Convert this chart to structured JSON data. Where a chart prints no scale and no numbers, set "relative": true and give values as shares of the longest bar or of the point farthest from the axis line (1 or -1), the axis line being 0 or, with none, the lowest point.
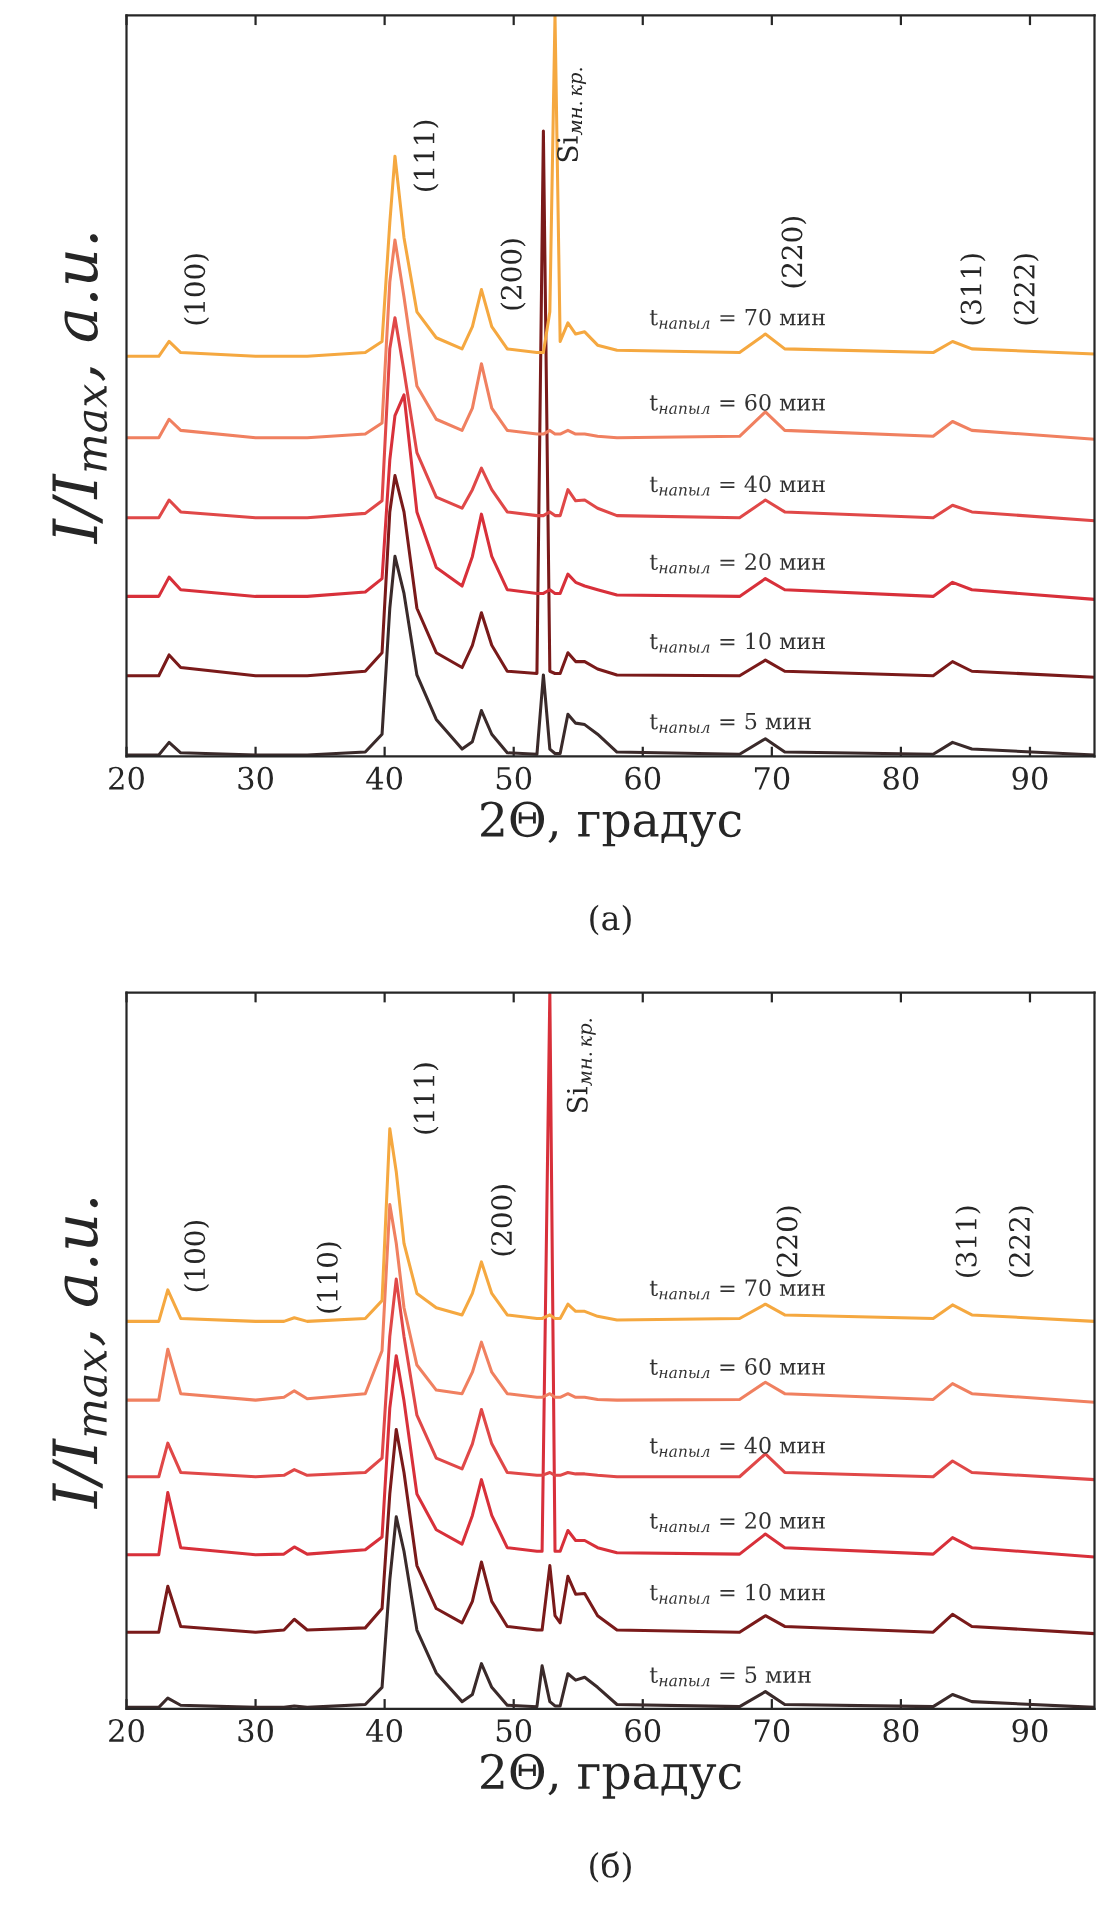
{
  "chart_data": [
    {
      "type": "line",
      "relative": true,
      "xlabel": "2Θ, градус",
      "ylabel": "I/I$_{max}$, a.u.",
      "xlim": [
        20,
        95
      ],
      "xticks": [
        20,
        30,
        40,
        50,
        60,
        70,
        80,
        90
      ],
      "grid": false,
      "legend": false,
      "marker": "none",
      "line_style": "solid",
      "x": [
        20,
        22.5,
        23.3,
        24.2,
        30,
        32.5,
        33.2,
        34,
        38.5,
        39.8,
        40.4,
        40.8,
        41.5,
        42.5,
        44,
        46,
        46.8,
        47.5,
        48.3,
        49.5,
        51.8,
        52.3,
        52.8,
        53.2,
        53.6,
        54.2,
        54.8,
        55.5,
        56.5,
        58,
        67.5,
        69.5,
        71,
        82.5,
        84,
        85.5,
        95
      ],
      "series": [
        {
          "name": "t$_{напыл}$ = 5 мин",
          "color": "#3a2a2a",
          "values": [
            0.002,
            0.002,
            0.019,
            0.005,
            0.002,
            0.002,
            0.002,
            0.002,
            0.006,
            0.03,
            0.2,
            0.27,
            0.22,
            0.11,
            0.05,
            0.01,
            0.02,
            0.062,
            0.03,
            0.005,
            0.003,
            0.11,
            0.01,
            0.004,
            0.004,
            0.057,
            0.045,
            0.043,
            0.03,
            0.006,
            0.003,
            0.024,
            0.006,
            0.003,
            0.019,
            0.01,
            0.002
          ]
        },
        {
          "name": "t$_{напыл}$ = 10 мин",
          "color": "#7a1a1a",
          "values": [
            0.109,
            0.109,
            0.137,
            0.12,
            0.109,
            0.109,
            0.109,
            0.109,
            0.115,
            0.14,
            0.33,
            0.379,
            0.33,
            0.2,
            0.14,
            0.12,
            0.15,
            0.194,
            0.15,
            0.115,
            0.112,
            0.844,
            0.115,
            0.112,
            0.112,
            0.14,
            0.128,
            0.128,
            0.118,
            0.11,
            0.109,
            0.13,
            0.115,
            0.109,
            0.128,
            0.115,
            0.107
          ]
        },
        {
          "name": "t$_{напыл}$ = 20 мин",
          "color": "#d8303a",
          "values": [
            0.216,
            0.216,
            0.242,
            0.225,
            0.216,
            0.216,
            0.216,
            0.216,
            0.222,
            0.24,
            0.4,
            0.46,
            0.488,
            0.33,
            0.255,
            0.23,
            0.27,
            0.327,
            0.27,
            0.225,
            0.22,
            0.22,
            0.225,
            0.22,
            0.22,
            0.246,
            0.235,
            0.23,
            0.225,
            0.218,
            0.216,
            0.24,
            0.225,
            0.216,
            0.235,
            0.225,
            0.212
          ]
        },
        {
          "name": "t$_{напыл}$ = 40 мин",
          "color": "#e04848",
          "values": [
            0.322,
            0.322,
            0.346,
            0.33,
            0.322,
            0.322,
            0.322,
            0.322,
            0.328,
            0.345,
            0.55,
            0.592,
            0.52,
            0.41,
            0.35,
            0.335,
            0.36,
            0.389,
            0.36,
            0.33,
            0.325,
            0.325,
            0.33,
            0.325,
            0.325,
            0.36,
            0.345,
            0.346,
            0.335,
            0.325,
            0.322,
            0.346,
            0.33,
            0.322,
            0.339,
            0.33,
            0.318
          ]
        },
        {
          "name": "t$_{напыл}$ = 60 мин",
          "color": "#f08060",
          "values": [
            0.43,
            0.43,
            0.455,
            0.44,
            0.43,
            0.43,
            0.43,
            0.43,
            0.435,
            0.45,
            0.64,
            0.697,
            0.62,
            0.5,
            0.455,
            0.44,
            0.47,
            0.53,
            0.47,
            0.44,
            0.435,
            0.435,
            0.44,
            0.435,
            0.435,
            0.44,
            0.435,
            0.435,
            0.432,
            0.43,
            0.432,
            0.465,
            0.44,
            0.432,
            0.452,
            0.44,
            0.428
          ]
        },
        {
          "name": "t$_{напыл}$ = 70 мин",
          "color": "#f5a840",
          "values": [
            0.54,
            0.54,
            0.56,
            0.545,
            0.54,
            0.54,
            0.54,
            0.54,
            0.545,
            0.56,
            0.72,
            0.81,
            0.7,
            0.6,
            0.565,
            0.55,
            0.58,
            0.63,
            0.58,
            0.55,
            0.545,
            0.545,
            0.6,
            1.0,
            0.56,
            0.585,
            0.57,
            0.573,
            0.555,
            0.548,
            0.545,
            0.57,
            0.55,
            0.545,
            0.56,
            0.55,
            0.543
          ]
        }
      ],
      "annotations": [
        "(100)",
        "(111)",
        "(200)",
        "Si$_{мн.кр.}$",
        "(220)",
        "(311)",
        "(222)",
        "(а)"
      ]
    },
    {
      "type": "line",
      "relative": true,
      "xlabel": "2Θ, градус",
      "ylabel": "I/I$_{max}$, a.u.",
      "xlim": [
        20,
        95
      ],
      "xticks": [
        20,
        30,
        40,
        50,
        60,
        70,
        80,
        90
      ],
      "grid": false,
      "legend": false,
      "marker": "none",
      "line_style": "solid",
      "x": [
        20,
        22.5,
        23.2,
        24.2,
        30,
        32.2,
        33,
        34,
        38.5,
        39.8,
        40.4,
        40.9,
        41.5,
        42.5,
        44,
        46,
        46.8,
        47.5,
        48.3,
        49.5,
        51.8,
        52.2,
        52.8,
        53.2,
        53.6,
        54.2,
        54.8,
        55.5,
        56.5,
        58,
        67.5,
        69.5,
        71,
        82.5,
        84,
        85.5,
        95
      ],
      "series": [
        {
          "name": "t$_{напыл}$ = 5 мин",
          "color": "#3a2a2a",
          "values": [
            0.002,
            0.002,
            0.015,
            0.005,
            0.002,
            0.002,
            0.004,
            0.002,
            0.006,
            0.03,
            0.18,
            0.268,
            0.22,
            0.11,
            0.05,
            0.01,
            0.02,
            0.063,
            0.03,
            0.005,
            0.003,
            0.06,
            0.01,
            0.004,
            0.004,
            0.049,
            0.04,
            0.044,
            0.03,
            0.006,
            0.003,
            0.024,
            0.006,
            0.003,
            0.02,
            0.01,
            0.002
          ]
        },
        {
          "name": "t$_{напыл}$ = 10 мин",
          "color": "#7a1a1a",
          "values": [
            0.107,
            0.107,
            0.171,
            0.115,
            0.107,
            0.11,
            0.125,
            0.11,
            0.113,
            0.14,
            0.3,
            0.39,
            0.33,
            0.2,
            0.14,
            0.12,
            0.15,
            0.205,
            0.15,
            0.115,
            0.11,
            0.11,
            0.2,
            0.13,
            0.12,
            0.185,
            0.16,
            0.161,
            0.13,
            0.11,
            0.107,
            0.13,
            0.115,
            0.107,
            0.132,
            0.115,
            0.105
          ]
        },
        {
          "name": "t$_{напыл}$ = 20 мин",
          "color": "#d8303a",
          "values": [
            0.215,
            0.215,
            0.302,
            0.225,
            0.215,
            0.216,
            0.226,
            0.216,
            0.222,
            0.24,
            0.42,
            0.493,
            0.43,
            0.3,
            0.25,
            0.23,
            0.27,
            0.32,
            0.27,
            0.225,
            0.22,
            0.22,
            1.0,
            0.22,
            0.22,
            0.249,
            0.235,
            0.235,
            0.225,
            0.218,
            0.216,
            0.244,
            0.225,
            0.216,
            0.239,
            0.225,
            0.212
          ]
        },
        {
          "name": "t$_{напыл}$ = 40 мин",
          "color": "#e04848",
          "values": [
            0.324,
            0.324,
            0.371,
            0.33,
            0.324,
            0.326,
            0.334,
            0.326,
            0.33,
            0.35,
            0.52,
            0.6,
            0.52,
            0.41,
            0.35,
            0.335,
            0.37,
            0.418,
            0.37,
            0.33,
            0.326,
            0.326,
            0.33,
            0.326,
            0.326,
            0.33,
            0.328,
            0.328,
            0.326,
            0.324,
            0.324,
            0.356,
            0.33,
            0.324,
            0.346,
            0.33,
            0.32
          ]
        },
        {
          "name": "t$_{напыл}$ = 60 мин",
          "color": "#f08060",
          "values": [
            0.431,
            0.431,
            0.502,
            0.44,
            0.431,
            0.435,
            0.444,
            0.433,
            0.44,
            0.5,
            0.704,
            0.65,
            0.56,
            0.48,
            0.445,
            0.44,
            0.47,
            0.512,
            0.47,
            0.44,
            0.435,
            0.435,
            0.44,
            0.435,
            0.435,
            0.44,
            0.435,
            0.435,
            0.432,
            0.431,
            0.432,
            0.456,
            0.44,
            0.432,
            0.454,
            0.44,
            0.428
          ]
        },
        {
          "name": "t$_{напыл}$ = 70 мин",
          "color": "#f5a840",
          "values": [
            0.541,
            0.541,
            0.585,
            0.545,
            0.541,
            0.541,
            0.546,
            0.541,
            0.545,
            0.57,
            0.81,
            0.75,
            0.65,
            0.58,
            0.56,
            0.55,
            0.58,
            0.624,
            0.58,
            0.55,
            0.545,
            0.545,
            0.55,
            0.545,
            0.545,
            0.565,
            0.555,
            0.555,
            0.548,
            0.543,
            0.545,
            0.565,
            0.55,
            0.545,
            0.564,
            0.55,
            0.541
          ]
        }
      ],
      "annotations": [
        "(100)",
        "(110)",
        "(111)",
        "(200)",
        "Si$_{мн.кр.}$",
        "(220)",
        "(311)",
        "(222)",
        "(б)"
      ]
    }
  ]
}
